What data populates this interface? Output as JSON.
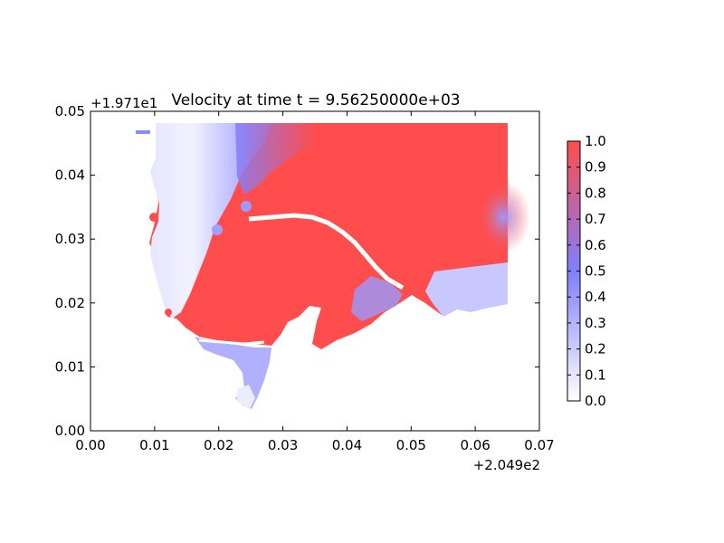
{
  "chart_data": {
    "type": "heatmap",
    "title": "Velocity at time t = 9.56250000e+03",
    "xlabel": "",
    "ylabel": "",
    "x_offset_label": "+2.049e2",
    "y_offset_label": "+1.971e1",
    "xlim": [
      0.0,
      0.07
    ],
    "ylim": [
      0.0,
      0.05
    ],
    "x_ticks": [
      "0.00",
      "0.01",
      "0.02",
      "0.03",
      "0.04",
      "0.05",
      "0.06",
      "0.07"
    ],
    "y_ticks": [
      "0.00",
      "0.01",
      "0.02",
      "0.03",
      "0.04",
      "0.05"
    ],
    "colorbar": {
      "range": [
        0.0,
        1.0
      ],
      "ticks": [
        "0.0",
        "0.1",
        "0.2",
        "0.3",
        "0.4",
        "0.5",
        "0.6",
        "0.7",
        "0.8",
        "0.9",
        "1.0"
      ],
      "colors": [
        "#ffffff",
        "#7f7fff",
        "#ff4c4c"
      ]
    },
    "grid": false
  }
}
